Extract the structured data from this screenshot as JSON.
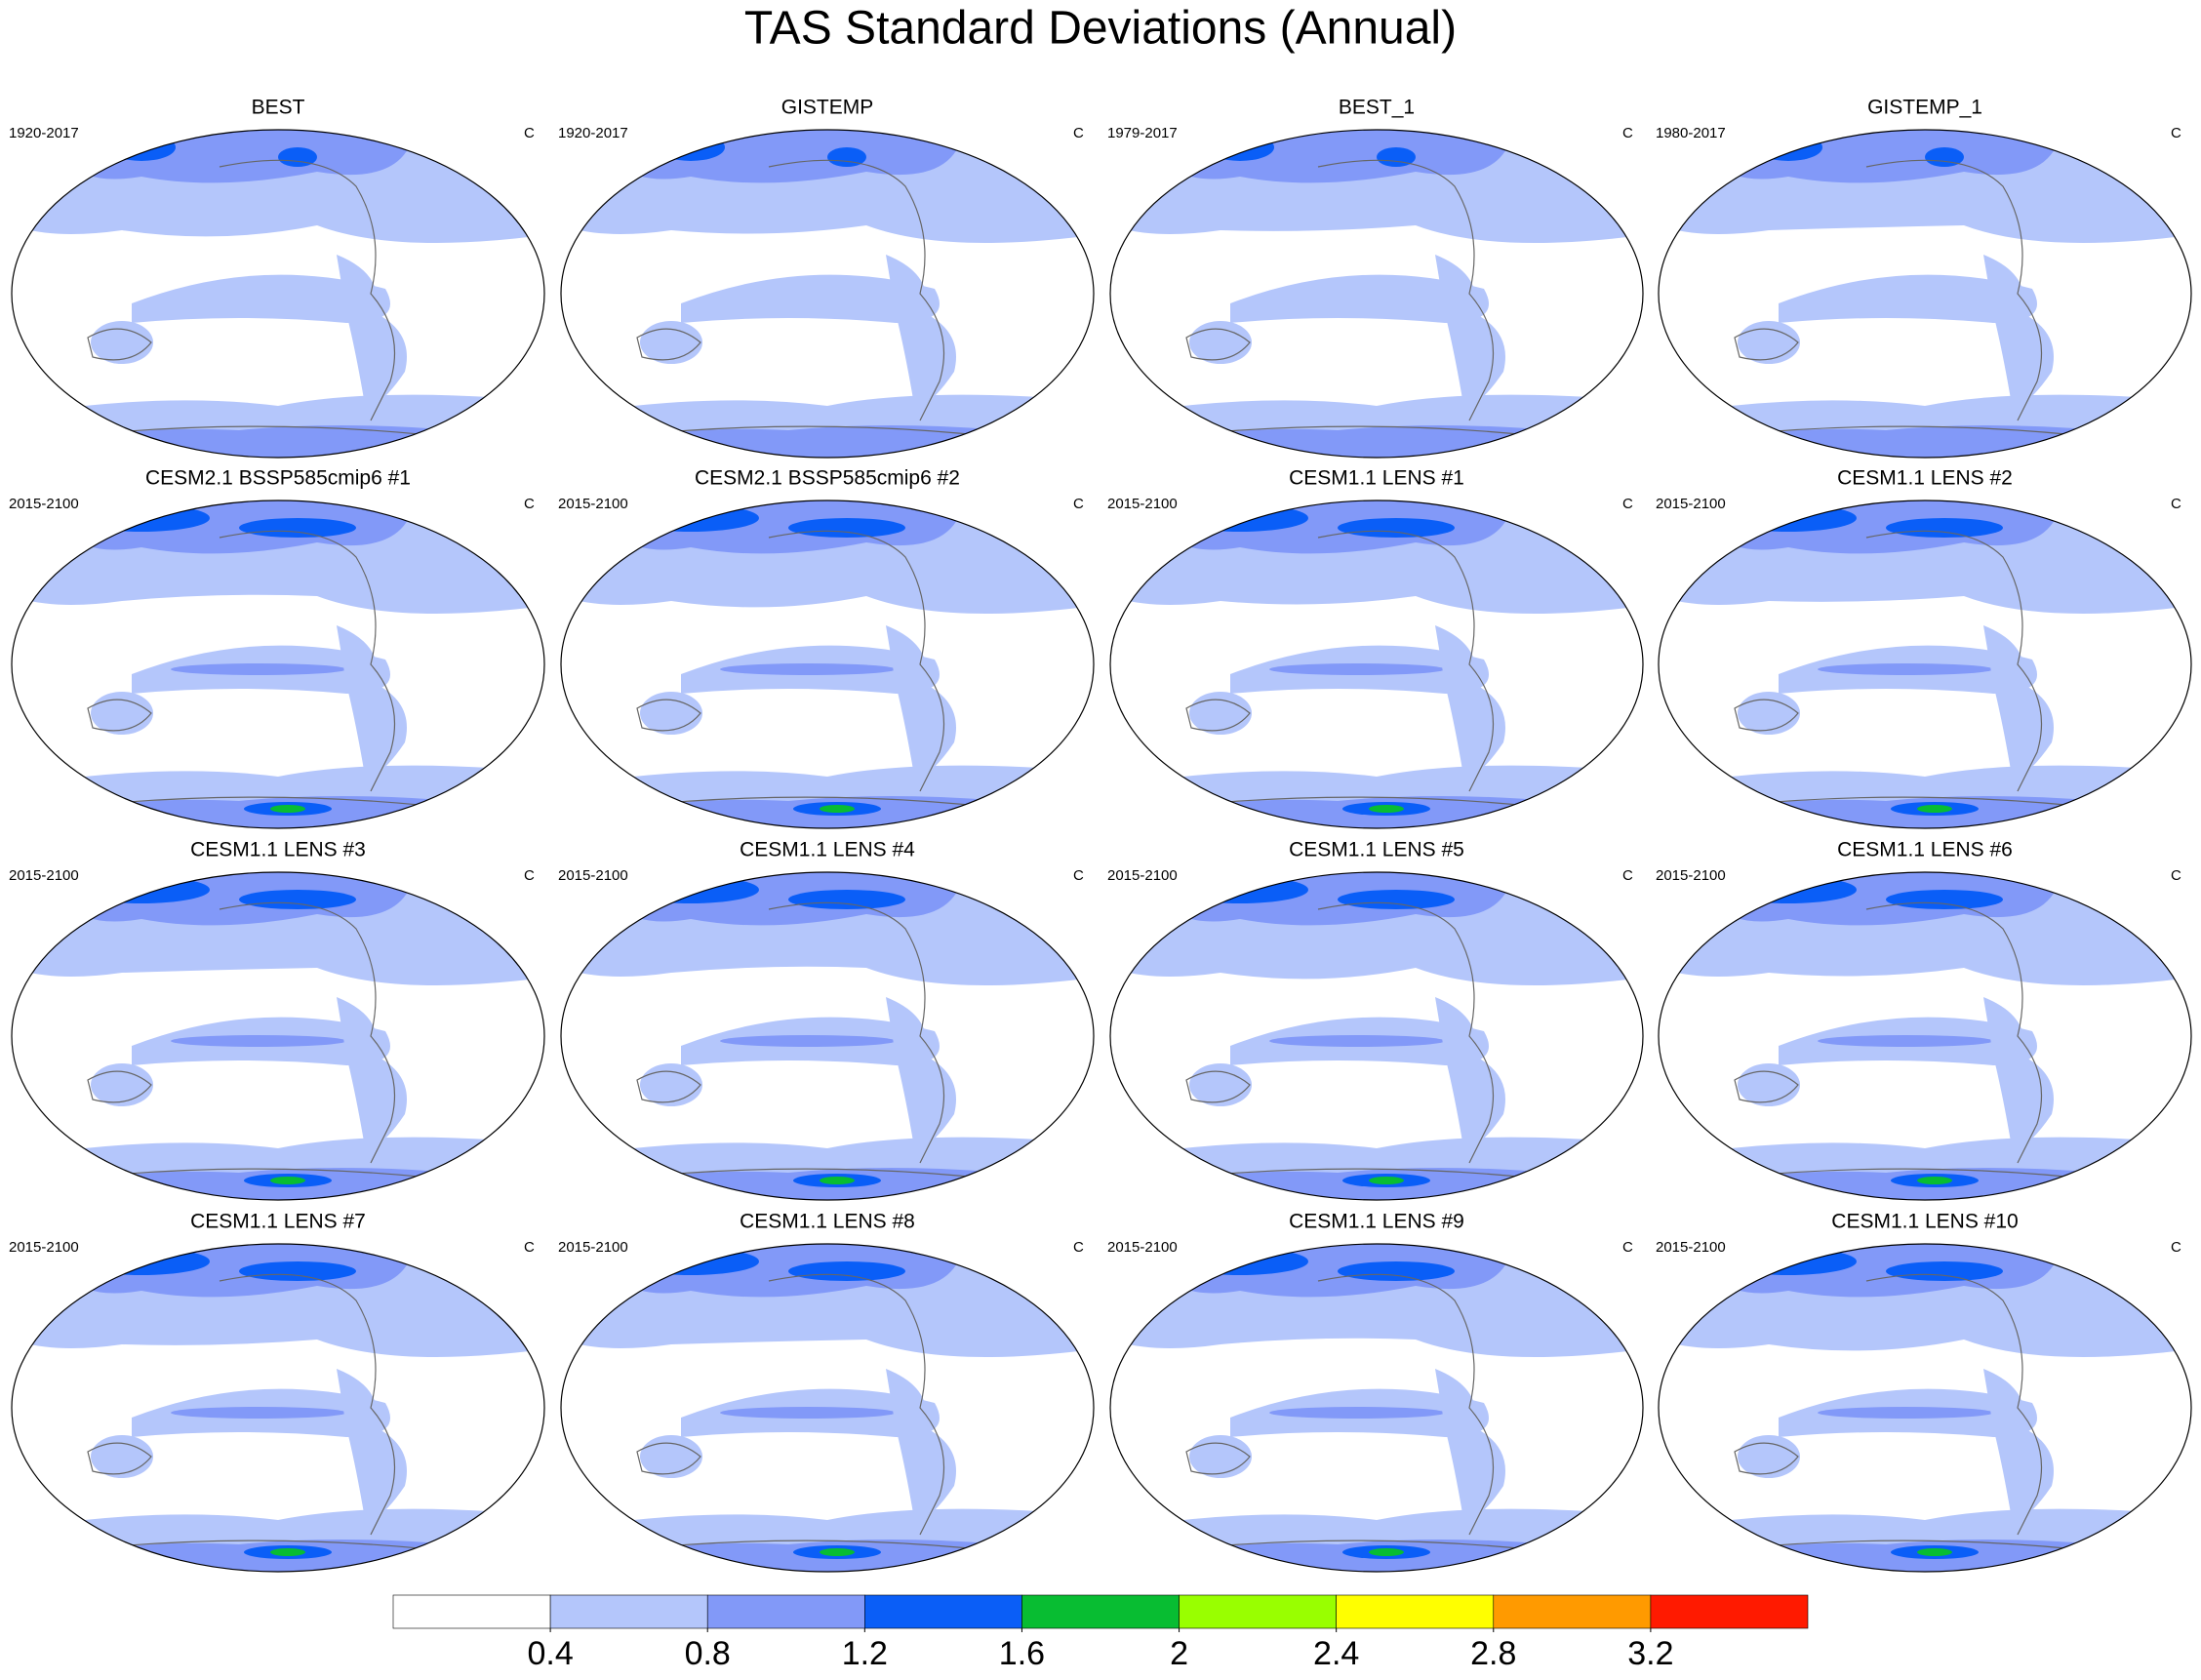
{
  "title": "TAS Standard Deviations (Annual)",
  "panels": [
    {
      "title": "BEST",
      "period": "1920-2017",
      "units": "C"
    },
    {
      "title": "GISTEMP",
      "period": "1920-2017",
      "units": "C"
    },
    {
      "title": "BEST_1",
      "period": "1979-2017",
      "units": "C"
    },
    {
      "title": "GISTEMP_1",
      "period": "1980-2017",
      "units": "C"
    },
    {
      "title": "CESM2.1 BSSP585cmip6 #1",
      "period": "2015-2100",
      "units": "C"
    },
    {
      "title": "CESM2.1 BSSP585cmip6 #2",
      "period": "2015-2100",
      "units": "C"
    },
    {
      "title": "CESM1.1 LENS #1",
      "period": "2015-2100",
      "units": "C"
    },
    {
      "title": "CESM1.1 LENS #2",
      "period": "2015-2100",
      "units": "C"
    },
    {
      "title": "CESM1.1 LENS #3",
      "period": "2015-2100",
      "units": "C"
    },
    {
      "title": "CESM1.1 LENS #4",
      "period": "2015-2100",
      "units": "C"
    },
    {
      "title": "CESM1.1 LENS #5",
      "period": "2015-2100",
      "units": "C"
    },
    {
      "title": "CESM1.1 LENS #6",
      "period": "2015-2100",
      "units": "C"
    },
    {
      "title": "CESM1.1 LENS #7",
      "period": "2015-2100",
      "units": "C"
    },
    {
      "title": "CESM1.1 LENS #8",
      "period": "2015-2100",
      "units": "C"
    },
    {
      "title": "CESM1.1 LENS #9",
      "period": "2015-2100",
      "units": "C"
    },
    {
      "title": "CESM1.1 LENS #10",
      "period": "2015-2100",
      "units": "C"
    }
  ],
  "colorbar": {
    "colors": [
      "#ffffff",
      "#b4c6fb",
      "#8299f8",
      "#0a5ef7",
      "#08bd32",
      "#99ff00",
      "#ffff00",
      "#ff9a00",
      "#ff1a00"
    ],
    "ticks": [
      0.4,
      0.8,
      1.2,
      1.6,
      2,
      2.4,
      2.8,
      3.2
    ]
  }
}
